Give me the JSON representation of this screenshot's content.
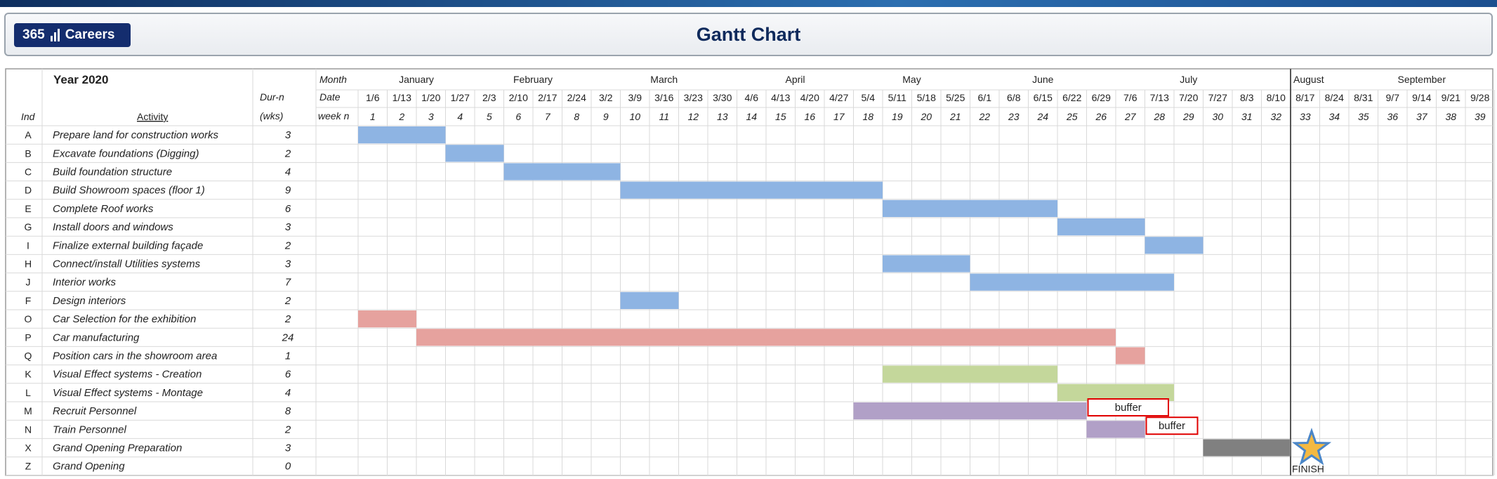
{
  "header": {
    "logo_text": "365",
    "logo_name": "Careers",
    "title": "Gantt Chart"
  },
  "table": {
    "year_label": "Year 2020",
    "col_ind": "Ind",
    "col_activity": "Activity",
    "col_dur_line1": "Dur-n",
    "col_dur_line2": "(wks)",
    "row_month": "Month",
    "row_date": "Date",
    "row_week": "week n"
  },
  "chart_data": {
    "type": "gantt",
    "title": "Gantt Chart",
    "months": [
      {
        "label": "January",
        "start_week": 1,
        "end_week": 5
      },
      {
        "label": "February",
        "start_week": 5,
        "end_week": 9
      },
      {
        "label": "March",
        "start_week": 9,
        "end_week": 14
      },
      {
        "label": "April",
        "start_week": 14,
        "end_week": 18
      },
      {
        "label": "May",
        "start_week": 18,
        "end_week": 22
      },
      {
        "label": "June",
        "start_week": 22,
        "end_week": 27
      },
      {
        "label": "July",
        "start_week": 27,
        "end_week": 32
      },
      {
        "label": "August",
        "start_week": 33,
        "end_week": 36
      },
      {
        "label": "September",
        "start_week": 36,
        "end_week": 39
      }
    ],
    "dates": [
      "1/6",
      "1/13",
      "1/20",
      "1/27",
      "2/3",
      "2/10",
      "2/17",
      "2/24",
      "3/2",
      "3/9",
      "3/16",
      "3/23",
      "3/30",
      "4/6",
      "4/13",
      "4/20",
      "4/27",
      "5/4",
      "5/11",
      "5/18",
      "5/25",
      "6/1",
      "6/8",
      "6/15",
      "6/22",
      "6/29",
      "7/6",
      "7/13",
      "7/20",
      "7/27",
      "8/3",
      "8/10",
      "8/17",
      "8/24",
      "8/31",
      "9/7",
      "9/14",
      "9/21",
      "9/28"
    ],
    "weeks": [
      1,
      2,
      3,
      4,
      5,
      6,
      7,
      8,
      9,
      10,
      11,
      12,
      13,
      14,
      15,
      16,
      17,
      18,
      19,
      20,
      21,
      22,
      23,
      24,
      25,
      26,
      27,
      28,
      29,
      30,
      31,
      32,
      33,
      34,
      35,
      36,
      37,
      38,
      39
    ],
    "tasks": [
      {
        "ind": "A",
        "activity": "Prepare land for construction works",
        "duration": "3",
        "start_week": 1,
        "weeks": 3,
        "color": "#8eb4e3"
      },
      {
        "ind": "B",
        "activity": "Excavate foundations (Digging)",
        "duration": "2",
        "start_week": 4,
        "weeks": 2,
        "color": "#8eb4e3"
      },
      {
        "ind": "C",
        "activity": "Build foundation structure",
        "duration": "4",
        "start_week": 6,
        "weeks": 4,
        "color": "#8eb4e3"
      },
      {
        "ind": "D",
        "activity": "Build Showroom spaces (floor 1)",
        "duration": "9",
        "start_week": 10,
        "weeks": 9,
        "color": "#8eb4e3"
      },
      {
        "ind": "E",
        "activity": "Complete Roof works",
        "duration": "6",
        "start_week": 19,
        "weeks": 6,
        "color": "#8eb4e3"
      },
      {
        "ind": "G",
        "activity": "Install doors and windows",
        "duration": "3",
        "start_week": 25,
        "weeks": 3,
        "color": "#8eb4e3"
      },
      {
        "ind": "I",
        "activity": "Finalize external building façade",
        "duration": "2",
        "start_week": 28,
        "weeks": 2,
        "color": "#8eb4e3"
      },
      {
        "ind": "H",
        "activity": "Connect/install Utilities systems",
        "duration": "3",
        "start_week": 19,
        "weeks": 3,
        "color": "#8eb4e3"
      },
      {
        "ind": "J",
        "activity": "Interior works",
        "duration": "7",
        "start_week": 22,
        "weeks": 7,
        "color": "#8eb4e3"
      },
      {
        "ind": "F",
        "activity": "Design interiors",
        "duration": "2",
        "start_week": 10,
        "weeks": 2,
        "color": "#8eb4e3"
      },
      {
        "ind": "O",
        "activity": "Car Selection for the exhibition",
        "duration": "2",
        "start_week": 1,
        "weeks": 2,
        "color": "#e6a29e"
      },
      {
        "ind": "P",
        "activity": "Car manufacturing",
        "duration": "24",
        "start_week": 3,
        "weeks": 24,
        "color": "#e6a29e"
      },
      {
        "ind": "Q",
        "activity": "Position cars in the showroom area",
        "duration": "1",
        "start_week": 27,
        "weeks": 1,
        "color": "#e6a29e"
      },
      {
        "ind": "K",
        "activity": "Visual Effect systems - Creation",
        "duration": "6",
        "start_week": 19,
        "weeks": 6,
        "color": "#c4d79b"
      },
      {
        "ind": "L",
        "activity": "Visual Effect systems - Montage",
        "duration": "4",
        "start_week": 25,
        "weeks": 4,
        "color": "#c4d79b"
      },
      {
        "ind": "M",
        "activity": "Recruit Personnel",
        "duration": "8",
        "start_week": 18,
        "weeks": 8,
        "color": "#b1a0c7"
      },
      {
        "ind": "N",
        "activity": "Train Personnel",
        "duration": "2",
        "start_week": 26,
        "weeks": 2,
        "color": "#b1a0c7"
      },
      {
        "ind": "X",
        "activity": "Grand Opening Preparation",
        "duration": "3",
        "start_week": 30,
        "weeks": 3,
        "color": "#808080"
      },
      {
        "ind": "Z",
        "activity": "Grand Opening",
        "duration": "0",
        "start_week": 33,
        "weeks": 0,
        "color": "#f4b942"
      }
    ],
    "annotations": [
      {
        "text": "buffer",
        "row": "M",
        "start_week": 26,
        "weeks": 3
      },
      {
        "text": "buffer",
        "row": "N",
        "start_week": 28,
        "weeks": 2
      },
      {
        "text": "FINISH",
        "row": "Z",
        "week": 33
      }
    ],
    "milestone_icon": "star-icon",
    "finish_line_week": 33,
    "grid": true
  }
}
